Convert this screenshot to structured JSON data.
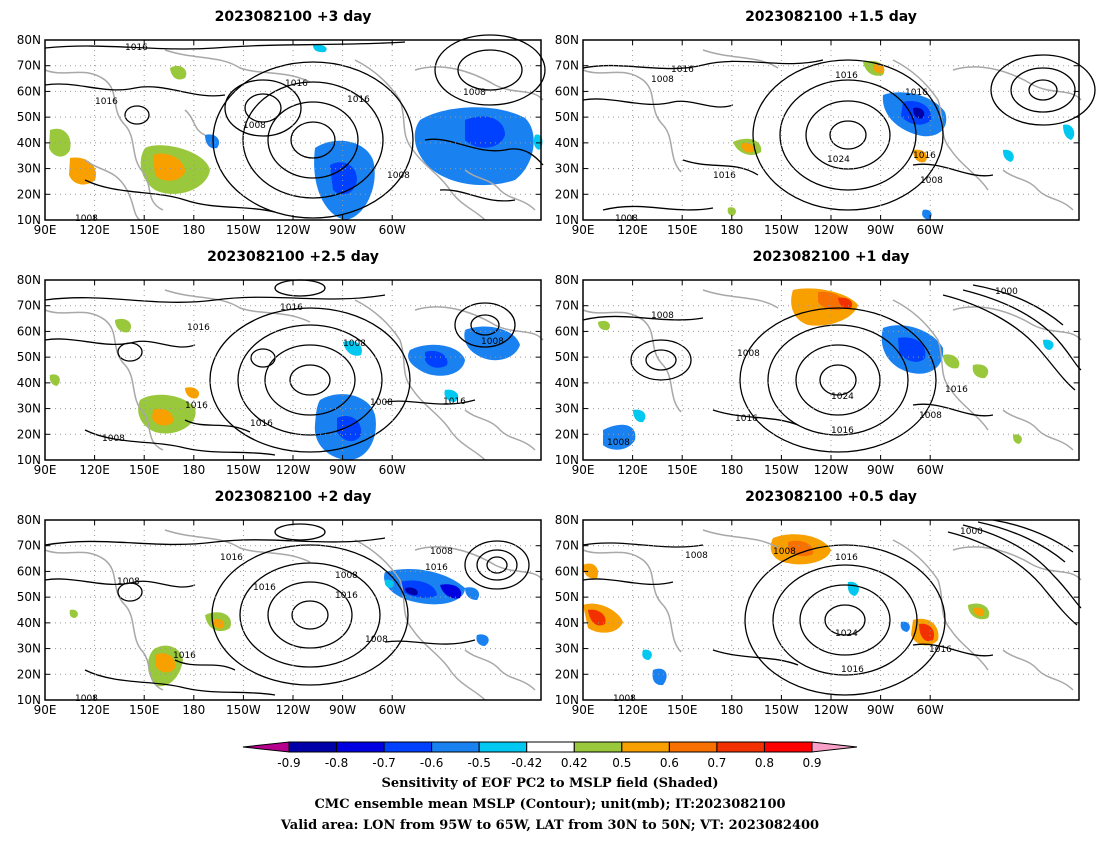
{
  "panels": [
    {
      "title": "2023082100  +3 day"
    },
    {
      "title": "2023082100  +1.5 day"
    },
    {
      "title": "2023082100  +2.5 day"
    },
    {
      "title": "2023082100  +1 day"
    },
    {
      "title": "2023082100  +2 day"
    },
    {
      "title": "2023082100  +0.5 day"
    }
  ],
  "lat_ticks": [
    "10N",
    "20N",
    "30N",
    "40N",
    "50N",
    "60N",
    "70N",
    "80N"
  ],
  "lon_ticks": [
    "90E",
    "120E",
    "150E",
    "180",
    "150W",
    "120W",
    "90W",
    "60W"
  ],
  "colorbar": {
    "labels": [
      "-0.9",
      "-0.8",
      "-0.7",
      "-0.6",
      "-0.5",
      "-0.42",
      "0.42",
      "0.5",
      "0.6",
      "0.7",
      "0.8",
      "0.9"
    ],
    "colors": [
      "#0000a8",
      "#0000e0",
      "#0040ff",
      "#1a82f0",
      "#00c8f0",
      "#ffffff",
      "#9ac83c",
      "#f7a000",
      "#f77000",
      "#f33000",
      "#ff0000"
    ],
    "under_color": "#b4008c",
    "over_color": "#f7a0c8"
  },
  "captions": {
    "line1": "Sensitivity of EOF PC2 to MSLP field (Shaded)",
    "line2": "CMC ensemble mean MSLP (Contour); unit(mb); IT:2023082100",
    "line3": "Valid area: LON from 95W to 65W, LAT from 30N to 50N; VT: 2023082400"
  },
  "contour_labels": [
    [
      "1016",
      "1016",
      "1016",
      "1016",
      "1008",
      "1008",
      "1008",
      "1008"
    ],
    [
      "1016",
      "1016",
      "1016",
      "1008",
      "1024",
      "1016",
      "1016",
      "1008",
      "1008"
    ],
    [
      "1016",
      "1016",
      "1016",
      "1016",
      "1016",
      "1008",
      "1008",
      "1008",
      "1008"
    ],
    [
      "1000",
      "1008",
      "1008",
      "1024",
      "1016",
      "1016",
      "1016",
      "1008",
      "1008"
    ],
    [
      "1016",
      "1016",
      "1016",
      "1016",
      "1016",
      "1008",
      "1008",
      "1008",
      "1008",
      "1008"
    ],
    [
      "1000",
      "1008",
      "1008",
      "1016",
      "1024",
      "1016",
      "1016",
      "1008"
    ]
  ]
}
